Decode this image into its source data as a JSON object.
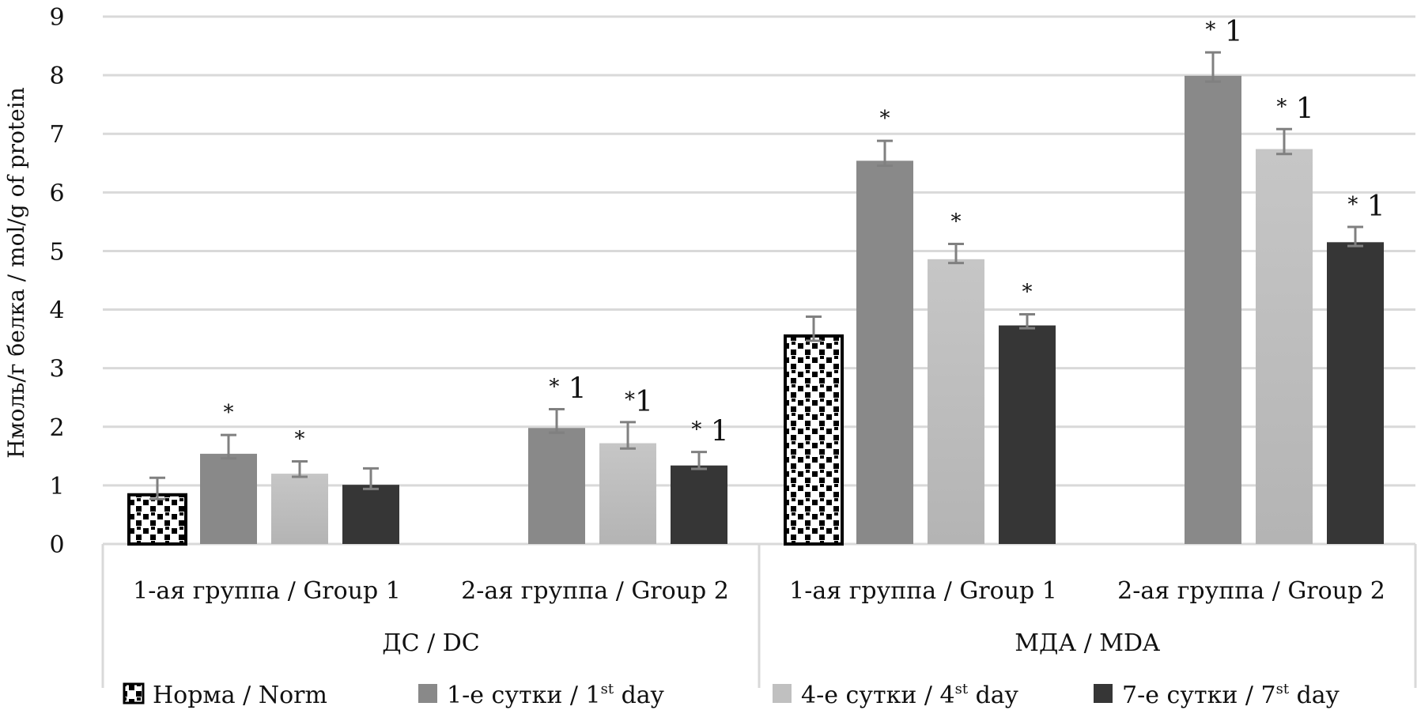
{
  "chart_data": {
    "type": "bar",
    "title": "",
    "ylabel": "Нмоль/г белка / mol/g of protein",
    "xlabel": "",
    "ylim": [
      0,
      9
    ],
    "yticks": [
      "0",
      "1",
      "2",
      "3",
      "4",
      "5",
      "6",
      "7",
      "8",
      "9"
    ],
    "grid": true,
    "legend_position": "bottom",
    "groups": [
      {
        "label": "ДС / DC",
        "categories": [
          "1-ая группа / Group 1",
          "2-ая группа / Group 2"
        ]
      },
      {
        "label": "МДА / MDA",
        "categories": [
          "1-ая группа / Group 1",
          "2-ая группа / Group 2"
        ]
      }
    ],
    "categories": [
      "1-ая группа / Group 1",
      "2-ая группа / Group 2",
      "1-ая группа / Group 1",
      "2-ая группа / Group 2"
    ],
    "series": [
      {
        "name": "Норма / Norm",
        "legend_main": "Норма / Norm",
        "legend_sup": "",
        "legend_tail": "",
        "color": "#000000",
        "pattern": "checker",
        "values": [
          0.84,
          null,
          3.55,
          null
        ],
        "errors": [
          0.29,
          null,
          0.33,
          null
        ],
        "annotations": [
          "",
          "",
          "",
          ""
        ]
      },
      {
        "name": "1-е сутки / 1st day",
        "legend_main": "1-е сутки / 1",
        "legend_sup": "st",
        "legend_tail": " day",
        "color": "#898989",
        "pattern": "solid",
        "values": [
          1.54,
          1.98,
          6.54,
          7.99
        ],
        "errors": [
          0.32,
          0.32,
          0.34,
          0.4
        ],
        "annotations": [
          "*",
          "* 1",
          "*",
          "* 1"
        ]
      },
      {
        "name": "4-е сутки / 4st day",
        "legend_main": "4-е сутки / 4",
        "legend_sup": "st",
        "legend_tail": " day",
        "color": "#c0c0c0",
        "pattern": "solid",
        "values": [
          1.2,
          1.72,
          4.86,
          6.74
        ],
        "errors": [
          0.21,
          0.36,
          0.26,
          0.34
        ],
        "annotations": [
          "*",
          "*1",
          "*",
          "* 1"
        ]
      },
      {
        "name": "7-е сутки / 7st day",
        "legend_main": "7-е сутки / 7",
        "legend_sup": "st",
        "legend_tail": " day",
        "color": "#363636",
        "pattern": "solid",
        "values": [
          1.01,
          1.34,
          3.73,
          5.15
        ],
        "errors": [
          0.28,
          0.23,
          0.19,
          0.26
        ],
        "annotations": [
          "",
          "* 1",
          "*",
          "* 1"
        ]
      }
    ],
    "error_bar_color": "#808080",
    "gridline_color": "#d9d9d9"
  }
}
